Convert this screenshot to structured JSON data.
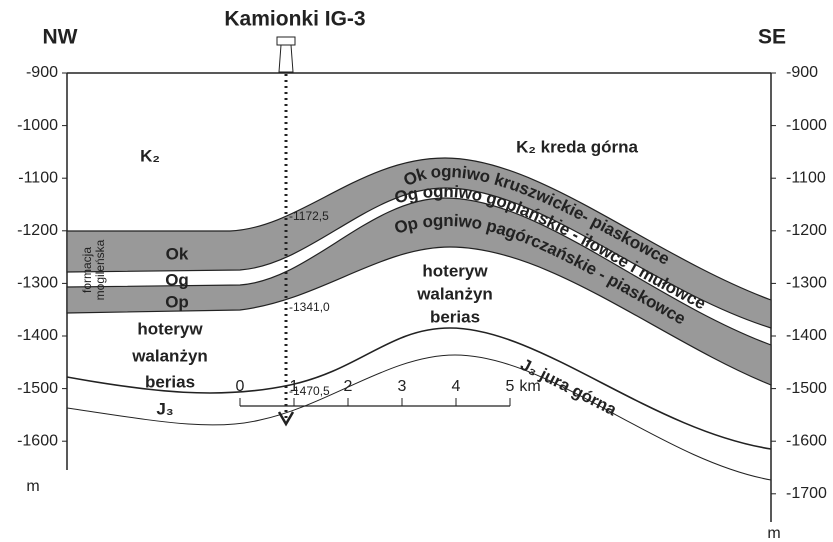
{
  "header": {
    "left": "NW",
    "right": "SE",
    "well": "Kamionki IG-3"
  },
  "left_axis": {
    "ticks": [
      "-900",
      "-1000",
      "-1100",
      "-1200",
      "-1300",
      "-1400",
      "-1500",
      "-1600"
    ],
    "unit": "m"
  },
  "right_axis": {
    "ticks": [
      "-900",
      "-1000",
      "-1100",
      "-1200",
      "-1300",
      "-1400",
      "-1500",
      "-1600",
      "-1700"
    ],
    "unit": "m"
  },
  "labels": {
    "k2_left": "K₂",
    "k2_right": "K₂ kreda górna",
    "formation": [
      "formacja",
      "mogileńska"
    ],
    "left_units": [
      "Ok",
      "Og",
      "Op",
      "hoteryw",
      "walanżyn",
      "berias",
      "J₃"
    ],
    "center_units": [
      "hoteryw",
      "walanżyn",
      "berias"
    ],
    "ok_band": "Ok ogniwo kruszwickie- piaskowce",
    "og_band": "Og ogniwo goplańskie - iłowce i mułowce",
    "op_band": "Op ogniwo pagórczańskie - piaskowce",
    "j3_right": "J₃ jura górna"
  },
  "depths": [
    "-1172,5",
    "-1341,0",
    "-1470,5"
  ],
  "scale": {
    "ticks": [
      "0",
      "1",
      "2",
      "3",
      "4",
      "5"
    ],
    "unit": "km"
  }
}
